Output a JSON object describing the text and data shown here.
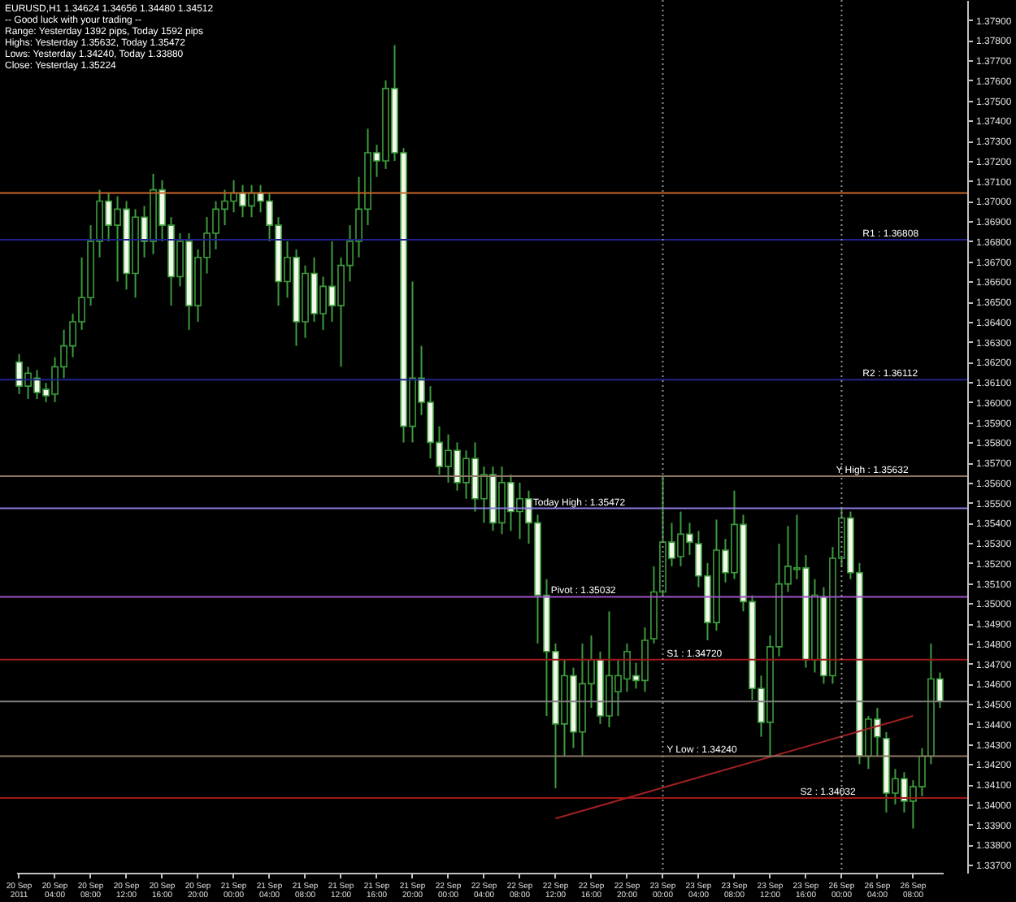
{
  "chart_data": {
    "type": "candlestick",
    "annotations": [
      "EURUSD,H1  1.34624 1.34656 1.34480 1.34512",
      "-- Good luck with your trading --",
      "Range: Yesterday 1392 pips, Today 1592 pips",
      "Highs: Yesterday 1.35632, Today 1.35472",
      "Lows: Yesterday 1.34240, Today 1.33880",
      "Close: Yesterday 1.35224"
    ],
    "categories": [
      "20 Sep 2011",
      null,
      null,
      null,
      "20 Sep 04:00",
      null,
      null,
      null,
      "20 Sep 08:00",
      null,
      null,
      null,
      "20 Sep 12:00",
      null,
      null,
      null,
      "20 Sep 16:00",
      null,
      null,
      null,
      "20 Sep 20:00",
      null,
      null,
      null,
      "21 Sep 00:00",
      null,
      null,
      null,
      "21 Sep 04:00",
      null,
      null,
      null,
      "21 Sep 08:00",
      null,
      null,
      null,
      "21 Sep 12:00",
      null,
      null,
      null,
      "21 Sep 16:00",
      null,
      null,
      null,
      "21 Sep 20:00",
      null,
      null,
      null,
      "22 Sep 00:00",
      null,
      null,
      null,
      "22 Sep 04:00",
      null,
      null,
      null,
      "22 Sep 08:00",
      null,
      null,
      null,
      "22 Sep 12:00",
      null,
      null,
      null,
      "22 Sep 16:00",
      null,
      null,
      null,
      "22 Sep 20:00",
      null,
      null,
      null,
      "23 Sep 00:00",
      null,
      null,
      null,
      "23 Sep 04:00",
      null,
      null,
      null,
      "23 Sep 08:00",
      null,
      null,
      null,
      "23 Sep 12:00",
      null,
      null,
      null,
      "23 Sep 16:00",
      null,
      null,
      null,
      "26 Sep 00:00",
      null,
      null,
      null,
      "26 Sep 04:00",
      null,
      null,
      null,
      "26 Sep 08:00",
      null,
      null,
      null
    ],
    "ohlc": [
      [
        1.362,
        1.3624,
        1.3604,
        1.3608
      ],
      [
        1.3608,
        1.36176,
        1.36016,
        1.36144
      ],
      [
        1.3612,
        1.3616,
        1.36016,
        1.36048
      ],
      [
        1.36064,
        1.36096,
        1.36,
        1.36032
      ],
      [
        1.3604,
        1.36224,
        1.36,
        1.36176
      ],
      [
        1.36176,
        1.3636,
        1.3612,
        1.3628
      ],
      [
        1.3628,
        1.3644,
        1.36224,
        1.364
      ],
      [
        1.364,
        1.3672,
        1.3636,
        1.3652
      ],
      [
        1.3652,
        1.3688,
        1.3648,
        1.368
      ],
      [
        1.368,
        1.37056,
        1.3672,
        1.37
      ],
      [
        1.37,
        1.3704,
        1.368,
        1.3688
      ],
      [
        1.3688,
        1.37024,
        1.366,
        1.3696
      ],
      [
        1.3696,
        1.37,
        1.3656,
        1.3664
      ],
      [
        1.3664,
        1.3696,
        1.3652,
        1.3692
      ],
      [
        1.3692,
        1.36976,
        1.3672,
        1.368
      ],
      [
        1.368,
        1.37136,
        1.36736,
        1.37056
      ],
      [
        1.37056,
        1.37104,
        1.368,
        1.3688
      ],
      [
        1.3688,
        1.3692,
        1.3648,
        1.36624
      ],
      [
        1.36624,
        1.3684,
        1.36576,
        1.368
      ],
      [
        1.368,
        1.3684,
        1.3636,
        1.3648
      ],
      [
        1.3648,
        1.3676,
        1.364,
        1.3672
      ],
      [
        1.3672,
        1.3692,
        1.3664,
        1.3684
      ],
      [
        1.3684,
        1.37,
        1.3676,
        1.3696
      ],
      [
        1.3696,
        1.37056,
        1.3688,
        1.37
      ],
      [
        1.37,
        1.37104,
        1.36944,
        1.3704
      ],
      [
        1.3704,
        1.3708,
        1.3692,
        1.36976
      ],
      [
        1.36976,
        1.3708,
        1.3692,
        1.3704
      ],
      [
        1.3704,
        1.3708,
        1.36944,
        1.37
      ],
      [
        1.37,
        1.3704,
        1.368,
        1.3688
      ],
      [
        1.3688,
        1.3692,
        1.3648,
        1.366
      ],
      [
        1.366,
        1.368,
        1.3652,
        1.3672
      ],
      [
        1.3672,
        1.3676,
        1.3628,
        1.364
      ],
      [
        1.364,
        1.3668,
        1.3632,
        1.3664
      ],
      [
        1.3664,
        1.3672,
        1.364,
        1.3644
      ],
      [
        1.3644,
        1.36624,
        1.3636,
        1.36576
      ],
      [
        1.36576,
        1.368,
        1.364,
        1.3648
      ],
      [
        1.3648,
        1.3672,
        1.36176,
        1.3668
      ],
      [
        1.3668,
        1.3688,
        1.366,
        1.368
      ],
      [
        1.368,
        1.3712,
        1.3672,
        1.3696
      ],
      [
        1.3696,
        1.3736,
        1.3688,
        1.3724
      ],
      [
        1.3724,
        1.3728,
        1.3712,
        1.372
      ],
      [
        1.372,
        1.376,
        1.3716,
        1.3756
      ],
      [
        1.3756,
        1.37776,
        1.372,
        1.3724
      ],
      [
        1.3724,
        1.37264,
        1.358,
        1.3588
      ],
      [
        1.3588,
        1.366,
        1.358,
        1.3612
      ],
      [
        1.3612,
        1.3628,
        1.35936,
        1.36
      ],
      [
        1.36,
        1.3608,
        1.3572,
        1.358
      ],
      [
        1.358,
        1.3588,
        1.3564,
        1.3568
      ],
      [
        1.3568,
        1.3584,
        1.356,
        1.3576
      ],
      [
        1.3576,
        1.358,
        1.3556,
        1.356
      ],
      [
        1.356,
        1.3576,
        1.3552,
        1.3572
      ],
      [
        1.3572,
        1.358,
        1.35456,
        1.3552
      ],
      [
        1.3552,
        1.3568,
        1.354,
        1.3564
      ],
      [
        1.3564,
        1.3568,
        1.3536,
        1.354
      ],
      [
        1.354,
        1.3568,
        1.35344,
        1.356
      ],
      [
        1.356,
        1.3564,
        1.3536,
        1.35456
      ],
      [
        1.35456,
        1.356,
        1.3532,
        1.3552
      ],
      [
        1.3552,
        1.3556,
        1.35296,
        1.354
      ],
      [
        1.354,
        1.3544,
        1.348,
        1.3504
      ],
      [
        1.3504,
        1.3512,
        1.3444,
        1.3476
      ],
      [
        1.3476,
        1.348,
        1.3408,
        1.344
      ],
      [
        1.344,
        1.3472,
        1.3424,
        1.3464
      ],
      [
        1.3464,
        1.3468,
        1.3428,
        1.3436
      ],
      [
        1.3436,
        1.348,
        1.3424,
        1.346
      ],
      [
        1.346,
        1.3484,
        1.3448,
        1.3472
      ],
      [
        1.3472,
        1.3476,
        1.344,
        1.3444
      ],
      [
        1.3444,
        1.3496,
        1.34384,
        1.3464
      ],
      [
        1.3456,
        1.3472,
        1.3444,
        1.3464
      ],
      [
        1.34624,
        1.348,
        1.3456,
        1.3476
      ],
      [
        1.3464,
        1.34704,
        1.34576,
        1.34616
      ],
      [
        1.34616,
        1.3488,
        1.3456,
        1.34816
      ],
      [
        1.34824,
        1.35184,
        1.348,
        1.35056
      ],
      [
        1.35056,
        1.35632,
        1.3504,
        1.35304
      ],
      [
        1.35304,
        1.354,
        1.35184,
        1.35224
      ],
      [
        1.35232,
        1.35456,
        1.35184,
        1.35344
      ],
      [
        1.35344,
        1.354,
        1.3524,
        1.35304
      ],
      [
        1.35296,
        1.3536,
        1.3508,
        1.35136
      ],
      [
        1.35136,
        1.352,
        1.34816,
        1.34904
      ],
      [
        1.34904,
        1.35416,
        1.34864,
        1.35264
      ],
      [
        1.35264,
        1.3532,
        1.35104,
        1.35152
      ],
      [
        1.35152,
        1.3556,
        1.3512,
        1.35392
      ],
      [
        1.35392,
        1.3544,
        1.3496,
        1.35008
      ],
      [
        1.35008,
        1.3504,
        1.3452,
        1.34576
      ],
      [
        1.34576,
        1.3464,
        1.34336,
        1.34408
      ],
      [
        1.34408,
        1.3484,
        1.3424,
        1.34784
      ],
      [
        1.34784,
        1.35296,
        1.34736,
        1.35096
      ],
      [
        1.35096,
        1.35384,
        1.35056,
        1.35184
      ],
      [
        1.35168,
        1.3544,
        1.3512,
        1.35176
      ],
      [
        1.35176,
        1.3524,
        1.3468,
        1.3472
      ],
      [
        1.3472,
        1.3512,
        1.34656,
        1.3504
      ],
      [
        1.35032,
        1.3508,
        1.346,
        1.3464
      ],
      [
        1.3464,
        1.3528,
        1.346,
        1.35224
      ],
      [
        1.35224,
        1.35472,
        1.35184,
        1.35424
      ],
      [
        1.35424,
        1.35456,
        1.3512,
        1.35152
      ],
      [
        1.35152,
        1.352,
        1.342,
        1.3424
      ],
      [
        1.3424,
        1.3444,
        1.34176,
        1.34424
      ],
      [
        1.34424,
        1.3448,
        1.3424,
        1.34336
      ],
      [
        1.34328,
        1.3436,
        1.3396,
        1.34056
      ],
      [
        1.34056,
        1.34176,
        1.34,
        1.34128
      ],
      [
        1.34128,
        1.3416,
        1.3396,
        1.34016
      ],
      [
        1.34016,
        1.3412,
        1.3388,
        1.34088
      ],
      [
        1.34088,
        1.3428,
        1.3404,
        1.3424
      ],
      [
        1.3424,
        1.348,
        1.342,
        1.34624
      ],
      [
        1.34624,
        1.34656,
        1.3448,
        1.34512
      ]
    ],
    "series": [
      {
        "type": "line",
        "color": "#a02020",
        "x": [
          "22 Sep 12:00",
          "26 Sep 08:00"
        ],
        "values": [
          1.3393,
          1.3444
        ]
      }
    ],
    "ylim": [
      1.3366,
      1.38
    ],
    "yticks": [
      {
        "value": 1.337,
        "label": "1.33700"
      },
      {
        "value": 1.338,
        "label": "1.33800"
      },
      {
        "value": 1.339,
        "label": "1.33900"
      },
      {
        "value": 1.34,
        "label": "1.34000"
      },
      {
        "value": 1.341,
        "label": "1.34100"
      },
      {
        "value": 1.342,
        "label": "1.34200"
      },
      {
        "value": 1.343,
        "label": "1.34300"
      },
      {
        "value": 1.344,
        "label": "1.34400"
      },
      {
        "value": 1.345,
        "label": "1.34500"
      },
      {
        "value": 1.346,
        "label": "1.34600"
      },
      {
        "value": 1.347,
        "label": "1.34700"
      },
      {
        "value": 1.348,
        "label": "1.34800"
      },
      {
        "value": 1.349,
        "label": "1.34900"
      },
      {
        "value": 1.35,
        "label": "1.35000"
      },
      {
        "value": 1.351,
        "label": "1.35100"
      },
      {
        "value": 1.352,
        "label": "1.35200"
      },
      {
        "value": 1.353,
        "label": "1.35300"
      },
      {
        "value": 1.354,
        "label": "1.35400"
      },
      {
        "value": 1.355,
        "label": "1.35500"
      },
      {
        "value": 1.356,
        "label": "1.35600"
      },
      {
        "value": 1.357,
        "label": "1.35700"
      },
      {
        "value": 1.358,
        "label": "1.35800"
      },
      {
        "value": 1.359,
        "label": "1.35900"
      },
      {
        "value": 1.36,
        "label": "1.36000"
      },
      {
        "value": 1.361,
        "label": "1.36100"
      },
      {
        "value": 1.362,
        "label": "1.36200"
      },
      {
        "value": 1.363,
        "label": "1.36300"
      },
      {
        "value": 1.364,
        "label": "1.36400"
      },
      {
        "value": 1.365,
        "label": "1.36500"
      },
      {
        "value": 1.366,
        "label": "1.36600"
      },
      {
        "value": 1.367,
        "label": "1.36700"
      },
      {
        "value": 1.368,
        "label": "1.36800"
      },
      {
        "value": 1.369,
        "label": "1.36900"
      },
      {
        "value": 1.37,
        "label": "1.37000"
      },
      {
        "value": 1.371,
        "label": "1.37100"
      },
      {
        "value": 1.372,
        "label": "1.37200"
      },
      {
        "value": 1.373,
        "label": "1.37300"
      },
      {
        "value": 1.374,
        "label": "1.37400"
      },
      {
        "value": 1.375,
        "label": "1.37500"
      },
      {
        "value": 1.376,
        "label": "1.37600"
      },
      {
        "value": 1.377,
        "label": "1.37700"
      },
      {
        "value": 1.378,
        "label": "1.37800"
      },
      {
        "value": 1.379,
        "label": "1.37900"
      }
    ],
    "ref_lines": [
      {
        "axis": "x",
        "value": "23 Sep 00:00",
        "label": null,
        "color": "#909090",
        "line_style": "dotted"
      },
      {
        "axis": "x",
        "value": "26 Sep 00:00",
        "label": null,
        "color": "#909090",
        "line_style": "dotted"
      },
      {
        "axis": "y",
        "value": 1.3704,
        "label": null,
        "color": "#c8642a",
        "line_style": "solid"
      },
      {
        "axis": "y",
        "value": 1.36808,
        "label": "R1 : 1.36808",
        "color": "#22228c",
        "line_style": "solid"
      },
      {
        "axis": "y",
        "value": 1.36112,
        "label": "R2 : 1.36112",
        "color": "#22228c",
        "line_style": "solid"
      },
      {
        "axis": "y",
        "value": 1.35632,
        "label": "Y High : 1.35632",
        "color": "#8c7864",
        "line_style": "solid"
      },
      {
        "axis": "y",
        "value": 1.35472,
        "label": "Today High : 1.35472",
        "color": "#8a7ae0",
        "line_style": "solid"
      },
      {
        "axis": "y",
        "value": 1.35032,
        "label": "Pivot : 1.35032",
        "color": "#a050c8",
        "line_style": "solid"
      },
      {
        "axis": "y",
        "value": 1.3472,
        "label": "S1 : 1.34720",
        "color": "#a01818",
        "line_style": "solid"
      },
      {
        "axis": "y",
        "value": 1.34512,
        "label": null,
        "color": "#808080",
        "line_style": "solid"
      },
      {
        "axis": "y",
        "value": 1.3424,
        "label": "Y Low : 1.34240",
        "color": "#8c7864",
        "line_style": "solid"
      },
      {
        "axis": "y",
        "value": 1.34032,
        "label": "S2 : 1.34032",
        "color": "#a01818",
        "line_style": "solid"
      }
    ]
  }
}
